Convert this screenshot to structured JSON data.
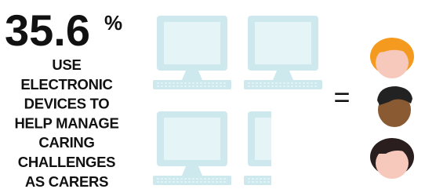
{
  "stat": {
    "number": "35.6",
    "unit": "%"
  },
  "caption": [
    "USE",
    "ELECTRONIC",
    "DEVICES TO",
    "HELP MANAGE",
    "CARING",
    "CHALLENGES",
    "AS CARERS"
  ],
  "equals": "="
}
